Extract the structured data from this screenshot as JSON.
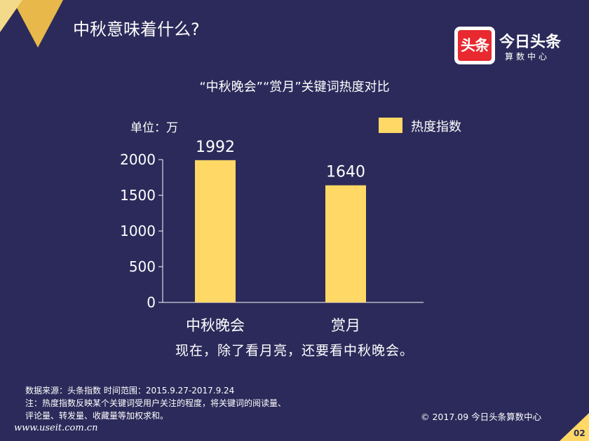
{
  "slide": {
    "title": "中秋意味着什么?",
    "conclusion": "现在，除了看月亮，还要看中秋晚会。",
    "page_number": "02",
    "accent_color": "#ffd866",
    "background_color": "#2c2a5a"
  },
  "brand": {
    "logo_text": "头条",
    "name": "今日头条",
    "subtitle": "算数中心",
    "logo_color": "#e8292f"
  },
  "footnote": {
    "source": "数据来源：头条指数  时间范围：2015.9.27-2017.9.24",
    "note_line1": "注：热度指数反映某个关键词受用户关注的程度，将关键词的阅读量、",
    "note_line2": "评论量、转发量、收藏量等加权求和。",
    "copyright": "© 2017.09 今日头条算数中心",
    "watermark": "www.useit.com.cn"
  },
  "chart_data": {
    "type": "bar",
    "title": "“中秋晚会”“赏月”关键词热度对比",
    "unit_label": "单位：万",
    "categories": [
      "中秋晚会",
      "赏月"
    ],
    "series": [
      {
        "name": "热度指数",
        "values": [
          1992,
          1640
        ],
        "color": "#ffd866"
      }
    ],
    "yticks": [
      0,
      500,
      1000,
      1500,
      2000
    ],
    "ylim": [
      0,
      2000
    ],
    "grid": false,
    "legend_position": "top-right",
    "data_labels": true
  }
}
